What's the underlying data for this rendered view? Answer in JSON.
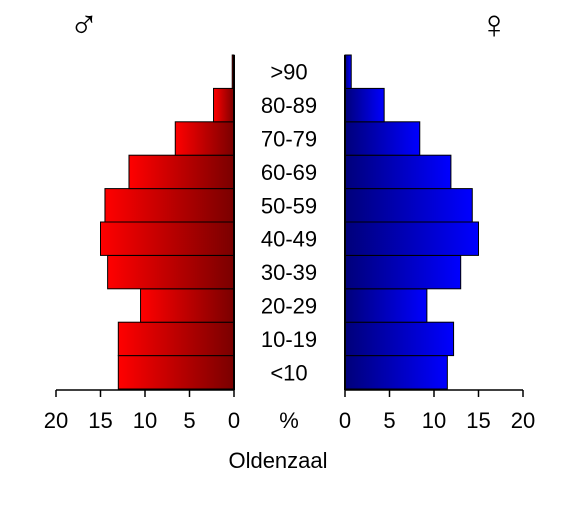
{
  "chart_data": {
    "type": "bar",
    "orientation": "horizontal-population-pyramid",
    "title": "Oldenzaal",
    "unit_label": "%",
    "categories": [
      "<10",
      "10-19",
      "20-29",
      "30-39",
      "40-49",
      "50-59",
      "60-69",
      "70-79",
      "80-89",
      ">90"
    ],
    "series": [
      {
        "name": "♂",
        "color_light": "#ff0000",
        "color_dark": "#7a0000",
        "values": [
          13.0,
          13.0,
          10.5,
          14.2,
          15.0,
          14.5,
          11.8,
          6.6,
          2.3,
          0.2
        ]
      },
      {
        "name": "♀",
        "color_light": "#0000ff",
        "color_dark": "#00007a",
        "values": [
          11.5,
          12.2,
          9.2,
          13.0,
          15.0,
          14.3,
          11.9,
          8.4,
          4.4,
          0.7
        ]
      }
    ],
    "xlim": [
      0,
      20
    ],
    "ticks": [
      0,
      5,
      10,
      15,
      20
    ],
    "tick_labels": [
      "0",
      "5",
      "10",
      "15",
      "20"
    ],
    "grid": false
  }
}
